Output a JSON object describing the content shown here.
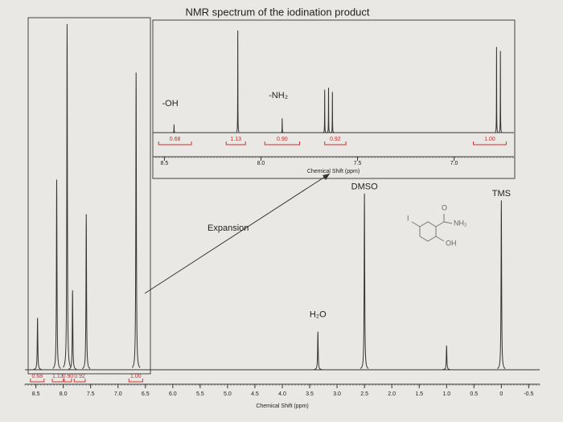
{
  "title": "NMR spectrum of the iodination product",
  "expansion_label": "Expansion",
  "structure_labels": [
    "I",
    "O",
    "NH₂",
    "OH"
  ],
  "chart_data": [
    {
      "type": "spectrum",
      "x_label": "Chemical Shift (ppm)",
      "xlim": [
        8.7,
        -0.7
      ],
      "xticks": [
        8.5,
        {
          "value": 8,
          "label": "8.0"
        },
        7.5,
        {
          "value": 7,
          "label": "7.0"
        },
        6.5,
        {
          "value": 6,
          "label": "6.0"
        },
        5.5,
        {
          "value": 5,
          "label": "5.0"
        },
        4.5,
        {
          "value": 4,
          "label": "4.0"
        },
        3.5,
        {
          "value": 3,
          "label": "3.0"
        },
        2.5,
        {
          "value": 2,
          "label": "2.0"
        },
        1.5,
        {
          "value": 1,
          "label": "1.0"
        },
        0.5,
        0,
        -0.5
      ],
      "ylim": [
        0,
        100
      ],
      "peaks": {
        "x": [
          8.47,
          8.12,
          7.93,
          7.83,
          7.58,
          6.67,
          3.35,
          2.5,
          1.0,
          0.0
        ],
        "values": [
          15,
          55,
          100,
          23,
          45,
          86,
          11,
          51,
          7,
          49
        ]
      },
      "integrals": {
        "from": [
          8.6,
          8.2,
          7.98,
          7.8,
          6.8
        ],
        "to": [
          8.35,
          8.0,
          7.85,
          7.6,
          6.55
        ],
        "values": [
          0.68,
          1.13,
          {
            "value": 0.9,
            "label": "0.90"
          },
          0.92,
          {
            "value": 1,
            "label": "1.00"
          }
        ]
      },
      "annotations": [
        {
          "text": "DMSO",
          "x": 2.5,
          "y": 51
        },
        {
          "text": "TMS",
          "x": 0.0,
          "y": 49
        },
        {
          "text": "H₂O",
          "x": 3.35,
          "y": 14
        }
      ]
    },
    {
      "type": "spectrum",
      "x_label": "Chemical Shift (ppm)",
      "xlim": [
        8.56,
        6.69
      ],
      "xticks": [
        8.5,
        {
          "value": 8,
          "label": "8.0"
        },
        7.5,
        {
          "value": 7,
          "label": "7.0"
        }
      ],
      "ylim": [
        0,
        100
      ],
      "peaks": {
        "x": [
          8.45,
          8.12,
          7.89,
          7.67,
          7.65,
          7.63,
          6.78,
          6.76
        ],
        "values": [
          8,
          100,
          14,
          42,
          44,
          40,
          84,
          80
        ]
      },
      "integrals": {
        "from": [
          8.53,
          8.18,
          7.98,
          7.67,
          6.9
        ],
        "to": [
          8.36,
          8.08,
          7.8,
          7.56,
          6.73
        ],
        "values": [
          0.68,
          1.13,
          {
            "value": 0.9,
            "label": "0.90"
          },
          0.92,
          {
            "value": 1,
            "label": "1.00"
          }
        ]
      },
      "annotations": [
        {
          "text": "-OH",
          "x": 8.47,
          "y": 22
        },
        {
          "text": "-NH₂",
          "x": 7.91,
          "y": 30
        }
      ]
    }
  ]
}
